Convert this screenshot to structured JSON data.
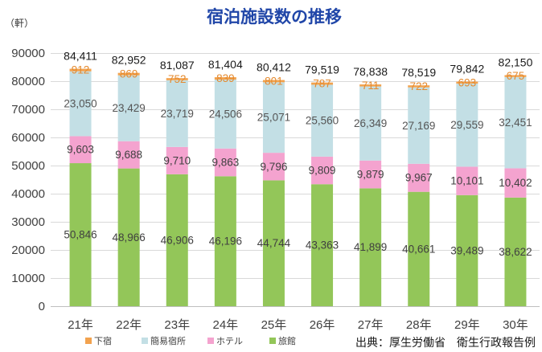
{
  "colors": {
    "title": "#2046a8"
  },
  "source": "出典：厚生労働省　衛生行政報告例",
  "chart_data": {
    "type": "bar",
    "stacked": true,
    "title": "宿泊施設数の推移",
    "ylabel": "（軒）",
    "ylim": [
      0,
      90000
    ],
    "yticks": [
      0,
      10000,
      20000,
      30000,
      40000,
      50000,
      60000,
      70000,
      80000,
      90000
    ],
    "grid": true,
    "legend": {
      "placement": "bottom-left"
    },
    "categories": [
      "21年",
      "22年",
      "23年",
      "24年",
      "25年",
      "26年",
      "27年",
      "28年",
      "29年",
      "30年"
    ],
    "series": [
      {
        "name": "旅館",
        "color": "#93c659",
        "label_color": "#404040",
        "values": [
          50846,
          48966,
          46906,
          46196,
          44744,
          43363,
          41899,
          40661,
          39489,
          38622
        ],
        "labels": [
          "50,846",
          "48,966",
          "46,906",
          "46,196",
          "44,744",
          "43,363",
          "41,899",
          "40,661",
          "39,489",
          "38,622"
        ]
      },
      {
        "name": "ホテル",
        "color": "#f4a3cf",
        "label_color": "#404040",
        "values": [
          9603,
          9688,
          9710,
          9863,
          9796,
          9809,
          9879,
          9967,
          10101,
          10402
        ],
        "labels": [
          "9,603",
          "9,688",
          "9,710",
          "9,863",
          "9,796",
          "9,809",
          "9,879",
          "9,967",
          "10,101",
          "10,402"
        ]
      },
      {
        "name": "簡易宿所",
        "color": "#c3dfe5",
        "label_color": "#555555",
        "values": [
          23050,
          23429,
          23719,
          24506,
          25071,
          25560,
          26349,
          27169,
          29559,
          32451
        ],
        "labels": [
          "23,050",
          "23,429",
          "23,719",
          "24,506",
          "25,071",
          "25,560",
          "26,349",
          "27,169",
          "29,559",
          "32,451"
        ]
      },
      {
        "name": "下宿",
        "color": "#f2a24e",
        "label_color": "#e48a2f",
        "values": [
          912,
          869,
          752,
          839,
          801,
          787,
          711,
          722,
          693,
          675
        ],
        "labels": [
          "912",
          "869",
          "752",
          "839",
          "801",
          "787",
          "711",
          "722",
          "693",
          "675"
        ]
      }
    ],
    "totals": [
      84411,
      82952,
      81087,
      81404,
      80412,
      79519,
      78838,
      78519,
      79842,
      82150
    ],
    "total_labels": [
      "84,411",
      "82,952",
      "81,087",
      "81,404",
      "80,412",
      "79,519",
      "78,838",
      "78,519",
      "79,842",
      "82,150"
    ]
  }
}
